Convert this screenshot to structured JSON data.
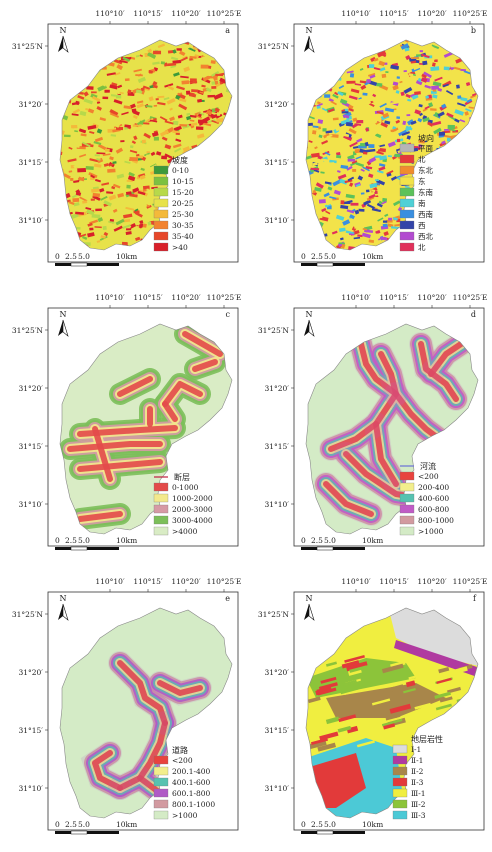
{
  "axis": {
    "top_ticks": [
      "110°10′",
      "110°15′",
      "110°20′",
      "110°25′E"
    ],
    "left_ticks": [
      "31°25′N",
      "31°20′",
      "31°15′",
      "31°10′"
    ],
    "north": "N",
    "scale": [
      "0",
      "2.5",
      "5.0",
      "10km"
    ]
  },
  "panels": [
    {
      "id": "a",
      "title": "坡度",
      "legend": [
        {
          "label": "0-10",
          "color": "#3c9a3a"
        },
        {
          "label": "10-15",
          "color": "#7cc140"
        },
        {
          "label": "15-20",
          "color": "#b7d94a"
        },
        {
          "label": "20-25",
          "color": "#e7e24a"
        },
        {
          "label": "25-30",
          "color": "#f4b93a"
        },
        {
          "label": "30-35",
          "color": "#f2822f"
        },
        {
          "label": "35-40",
          "color": "#e6472a"
        },
        {
          "label": ">40",
          "color": "#d8202a"
        }
      ]
    },
    {
      "id": "b",
      "title": "坡向",
      "legend": [
        {
          "label": "平面",
          "color": "#b5b5b5"
        },
        {
          "label": "北",
          "color": "#e43a3a"
        },
        {
          "label": "东北",
          "color": "#f08c2e"
        },
        {
          "label": "东",
          "color": "#f2e34a"
        },
        {
          "label": "东南",
          "color": "#5cc25a"
        },
        {
          "label": "南",
          "color": "#4fd0d6"
        },
        {
          "label": "西南",
          "color": "#3a8fe0"
        },
        {
          "label": "西",
          "color": "#3344a8"
        },
        {
          "label": "西北",
          "color": "#b24bd0"
        },
        {
          "label": "北",
          "color": "#e0305a"
        }
      ]
    },
    {
      "id": "c",
      "title": "断层",
      "legend": [
        {
          "label": "0-1000",
          "color": "#e34a4a"
        },
        {
          "label": "1000-2000",
          "color": "#f3e98c"
        },
        {
          "label": "2000-3000",
          "color": "#d69aa5"
        },
        {
          "label": "3000-4000",
          "color": "#7cbf5a"
        },
        {
          "label": ">4000",
          "color": "#d9ecc5"
        }
      ]
    },
    {
      "id": "d",
      "title": "河流",
      "legend": [
        {
          "label": "<200",
          "color": "#e8433e"
        },
        {
          "label": "200-400",
          "color": "#f2ee8c"
        },
        {
          "label": "400-600",
          "color": "#56c2b0"
        },
        {
          "label": "600-800",
          "color": "#c05bc6"
        },
        {
          "label": "800-1000",
          "color": "#d29aa0"
        },
        {
          "label": ">1000",
          "color": "#d4ebc6"
        }
      ]
    },
    {
      "id": "e",
      "title": "道路",
      "legend": [
        {
          "label": "<200",
          "color": "#e8433e"
        },
        {
          "label": "200.1-400",
          "color": "#f2ee8c"
        },
        {
          "label": "400.1-600",
          "color": "#56c2b0"
        },
        {
          "label": "600.1-800",
          "color": "#b05bc6"
        },
        {
          "label": "800.1-1000",
          "color": "#d29aa0"
        },
        {
          "label": ">1000",
          "color": "#d4ebc6"
        }
      ]
    },
    {
      "id": "f",
      "title": "地层岩性",
      "legend": [
        {
          "label": "Ⅰ-1",
          "color": "#dcdcdc"
        },
        {
          "label": "Ⅱ-1",
          "color": "#b03aa0"
        },
        {
          "label": "Ⅱ-2",
          "color": "#a8864a"
        },
        {
          "label": "Ⅱ-3",
          "color": "#e23a3a"
        },
        {
          "label": "Ⅲ-1",
          "color": "#f0ee40"
        },
        {
          "label": "Ⅲ-2",
          "color": "#8cc43a"
        },
        {
          "label": "Ⅲ-3",
          "color": "#4cc9d6"
        }
      ]
    }
  ]
}
